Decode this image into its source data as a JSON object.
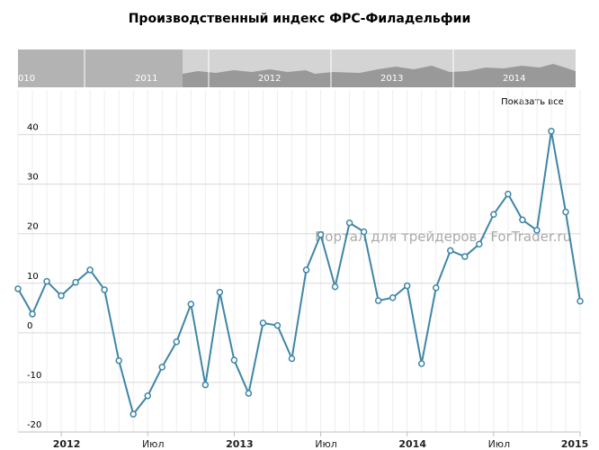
{
  "chart_data": {
    "type": "line",
    "title": "Производственный индекс ФРС-Филадельфии",
    "watermark": "Портал для трейдеров - ForTrader.ru",
    "reset_button": "Показать все",
    "navigator_labels": [
      "010",
      "2011",
      "2012",
      "2013",
      "2014"
    ],
    "categories": [
      null,
      null,
      null,
      "2012",
      null,
      null,
      null,
      null,
      null,
      "Июл",
      null,
      null,
      null,
      null,
      null,
      "2013",
      null,
      null,
      null,
      null,
      null,
      "Июл",
      null,
      null,
      null,
      null,
      null,
      "2014",
      null,
      null,
      null,
      null,
      null,
      "Июл",
      null,
      null,
      null,
      null,
      null,
      "2015"
    ],
    "series": [
      {
        "color": "#3f86a6",
        "values": [
          8.9,
          3.8,
          10.4,
          7.5,
          10.2,
          12.7,
          8.7,
          -5.6,
          -16.4,
          -12.7,
          -6.9,
          -1.8,
          5.8,
          -10.5,
          8.2,
          -5.5,
          -12.2,
          2.0,
          1.5,
          -5.2,
          12.7,
          19.8,
          9.3,
          22.2,
          20.4,
          6.5,
          7.1,
          9.5,
          -6.2,
          9.1,
          16.6,
          15.4,
          17.9,
          23.9,
          28.0,
          22.8,
          20.7,
          40.7,
          24.4,
          6.4
        ]
      }
    ],
    "ylim": [
      -20,
      49
    ],
    "yticks": [
      -20,
      -10,
      0,
      10,
      20,
      30,
      40
    ],
    "grid": true
  }
}
